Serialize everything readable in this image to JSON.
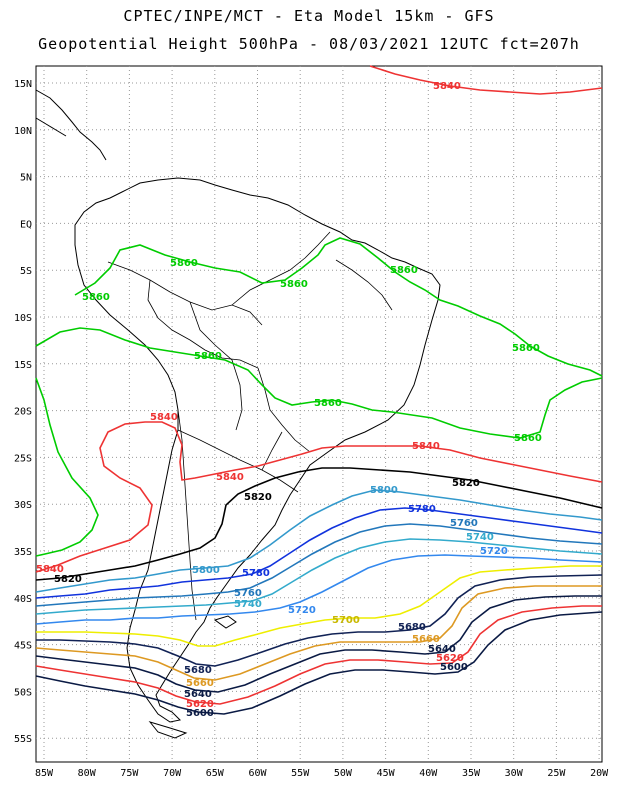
{
  "header": {
    "line1": "CPTEC/INPE/MCT -  Eta Model 15km - GFS",
    "line2": "Geopotential Height 500hPa - 08/03/2021 12UTC fct=207h"
  },
  "axes": {
    "lat_labels": [
      "15N",
      "10N",
      "5N",
      "EQ",
      "5S",
      "10S",
      "15S",
      "20S",
      "25S",
      "30S",
      "35S",
      "40S",
      "45S",
      "50S",
      "55S"
    ],
    "lon_labels": [
      "85W",
      "80W",
      "75W",
      "70W",
      "65W",
      "60W",
      "55W",
      "50W",
      "45W",
      "40W",
      "35W",
      "30W",
      "25W",
      "20W"
    ],
    "grid": "dotted"
  },
  "colors": {
    "c5860": "#00cc00",
    "c5840": "#ee3333",
    "c5820": "#000000",
    "c5800": "#3399cc",
    "c5780": "#1133dd",
    "c5760": "#2277bb",
    "c5740": "#33aacc",
    "c5720": "#3388ee",
    "c5700": "#eeee00",
    "c5680": "#112255",
    "c5660": "#dd9922",
    "c5640": "#0a1a44",
    "c5620": "#ee3333",
    "c5600": "#0a1a44"
  },
  "contour_labels": {
    "l5860a": "5860",
    "l5860b": "5860",
    "l5860c": "5860",
    "l5860d": "5860",
    "l5860e": "5860",
    "l5860f": "5860",
    "l5860g": "5860",
    "l5860h": "5860",
    "l5840a": "5840",
    "l5840b": "5840",
    "l5840c": "5840",
    "l5840d": "5840",
    "l5840e": "5840",
    "l5820a": "5820",
    "l5820b": "5820",
    "l5820c": "5820",
    "l5800a": "5800",
    "l5800b": "5800",
    "l5780a": "5780",
    "l5780b": "5780",
    "l5760a": "5760",
    "l5760b": "5760",
    "l5740a": "5740",
    "l5740b": "5740",
    "l5720a": "5720",
    "l5720b": "5720",
    "l5700a": "5700",
    "l5680a": "5680",
    "l5680b": "5680",
    "l5660a": "5660",
    "l5660b": "5660",
    "l5640a": "5640",
    "l5640b": "5640",
    "l5620a": "5620",
    "l5620b": "5620",
    "l5600a": "5600",
    "l5600b": "5600"
  }
}
